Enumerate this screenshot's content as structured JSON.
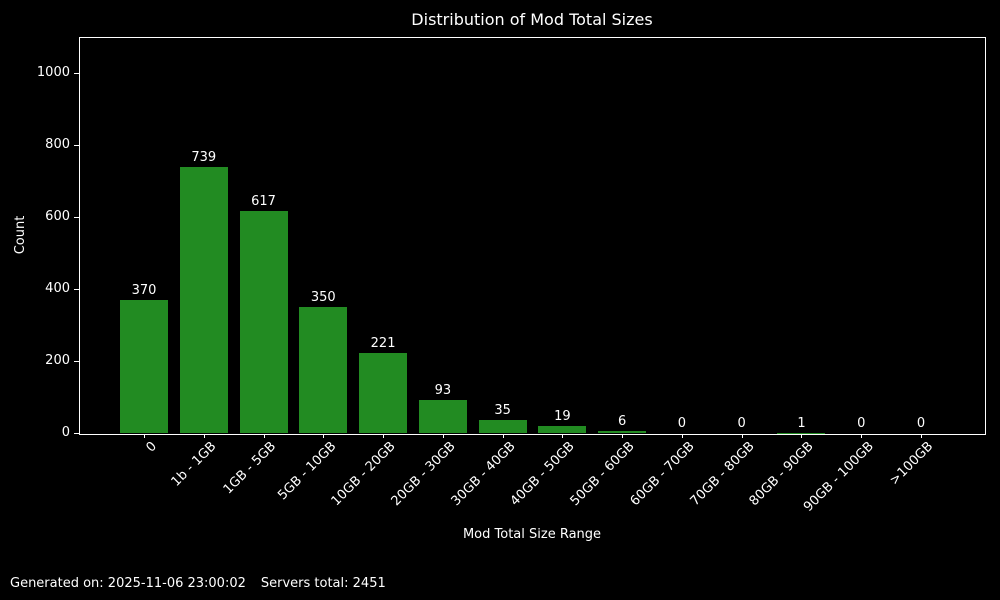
{
  "title": "Distribution of Mod Total Sizes",
  "footer": {
    "generated": "Generated on: 2025-11-06 23:00:02",
    "servers_total": "Servers total: 2451"
  },
  "chart_data": {
    "type": "bar",
    "title": "Distribution of Mod Total Sizes",
    "xlabel": "Mod Total Size Range",
    "ylabel": "Count",
    "categories": [
      "0",
      "1b - 1GB",
      "1GB - 5GB",
      "5GB - 10GB",
      "10GB - 20GB",
      "20GB - 30GB",
      "30GB - 40GB",
      "40GB - 50GB",
      "50GB - 60GB",
      "60GB - 70GB",
      "70GB - 80GB",
      "80GB - 90GB",
      "90GB - 100GB",
      ">100GB"
    ],
    "values": [
      370,
      739,
      617,
      350,
      221,
      93,
      35,
      19,
      6,
      0,
      0,
      1,
      0,
      0
    ],
    "value_labels_shown": true,
    "ylim": [
      0,
      1100
    ],
    "yticks": [
      0,
      200,
      400,
      600,
      800,
      1000
    ],
    "x_tick_rotation_deg": 45,
    "bar_color": "#228B22",
    "background_color": "#000000",
    "text_color": "#ffffff",
    "axis_color": "#ffffff",
    "grid": false,
    "legend": null
  }
}
